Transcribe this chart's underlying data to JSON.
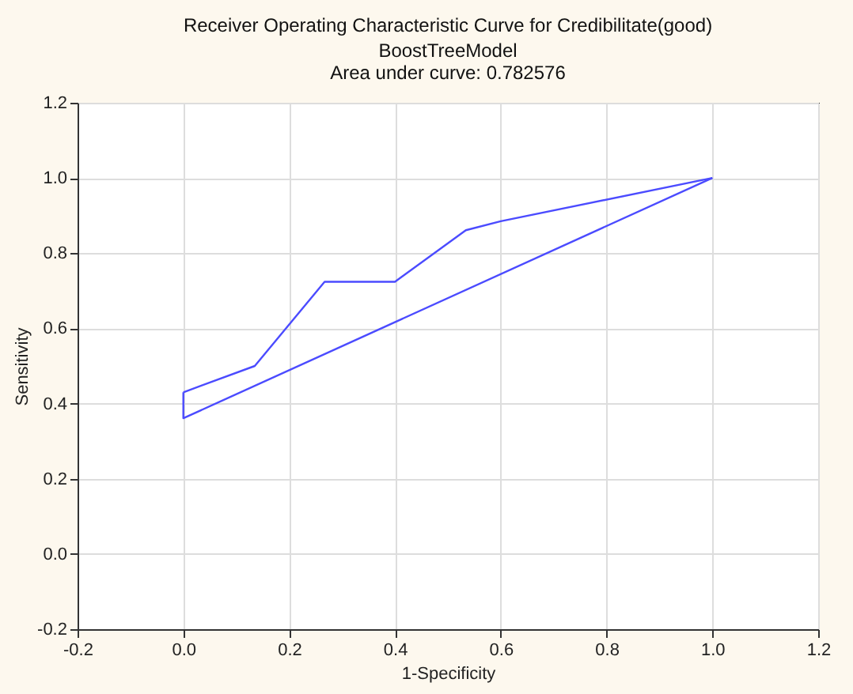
{
  "chart_data": {
    "type": "line",
    "title": "Receiver Operating Characteristic Curve for Credibilitate(good)",
    "subtitle": "BoostTreeModel",
    "annotations": [
      "Area under curve: 0.782576"
    ],
    "xlabel": "1-Specificity",
    "ylabel": "Sensitivity",
    "series": [
      {
        "color": "#4b4bff",
        "x": [
          0.0,
          0.135,
          0.267,
          0.4,
          0.534,
          0.6,
          1.0
        ],
        "values": [
          0.43,
          0.5,
          0.724,
          0.724,
          0.861,
          0.885,
          1.0
        ]
      },
      {
        "color": "#4b4bff",
        "x": [
          0.0,
          0.0,
          1.0
        ],
        "values": [
          0.43,
          0.361,
          1.0
        ]
      }
    ],
    "xlim": [
      -0.2,
      1.2
    ],
    "xticks": [
      -0.2,
      {
        "value": 0,
        "label": "0.0"
      },
      0.2,
      0.4,
      0.6,
      0.8,
      {
        "value": 1,
        "label": "1.0"
      },
      1.2
    ],
    "ylim": [
      -0.2,
      1.2
    ],
    "yticks": [
      -0.2,
      {
        "value": 0,
        "label": "0.0"
      },
      0.2,
      0.4,
      0.6,
      0.8,
      {
        "value": 1,
        "label": "1.0"
      },
      1.2
    ],
    "grid": true,
    "marker": "none",
    "line_style": "solid"
  }
}
